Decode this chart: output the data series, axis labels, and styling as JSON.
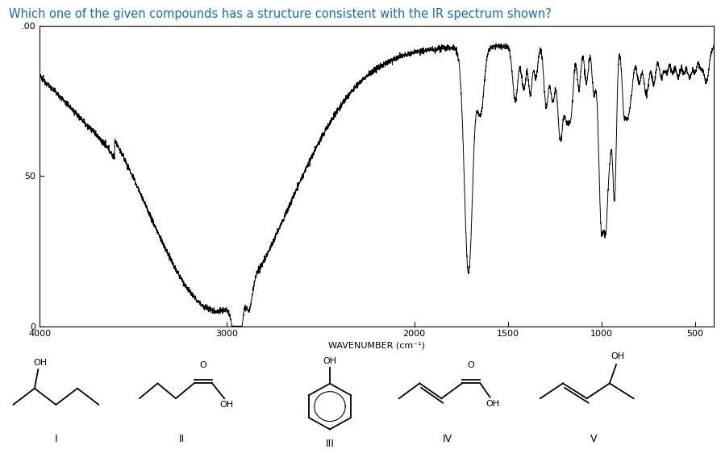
{
  "title": "Which one of the given compounds has a structure consistent with the IR spectrum shown?",
  "title_color": "#1a6cb5",
  "title_fontsize": 10.5,
  "bg_color": "#ffffff",
  "xlabel": "WAVENUMBER (cm⁻¹)",
  "xticks": [
    4000,
    3000,
    2000,
    1500,
    1000,
    500
  ],
  "xlim_left": 4000,
  "xlim_right": 400,
  "ylim_top": 100,
  "ylim_bottom": 0,
  "compound_labels": [
    "I",
    "II",
    "III",
    "IV",
    "V"
  ],
  "line_color": "#000000",
  "spectrum_lw": 0.7
}
